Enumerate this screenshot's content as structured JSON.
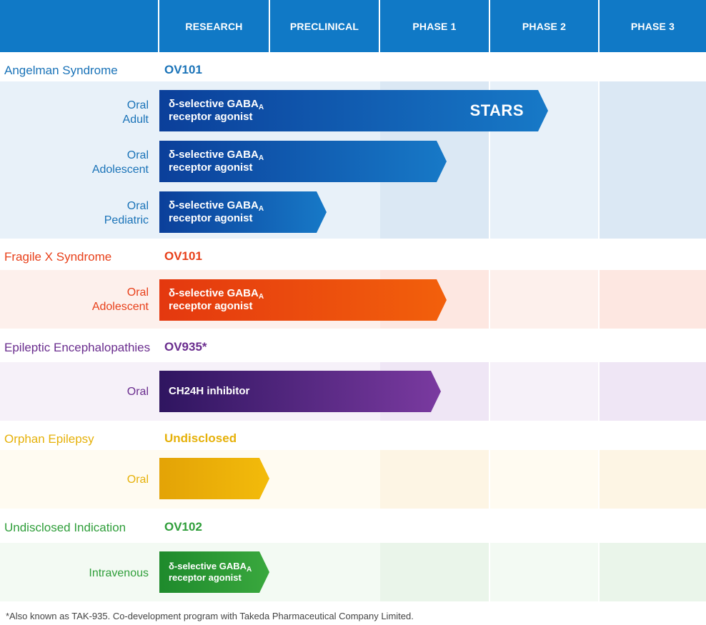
{
  "header": {
    "phases": [
      "RESEARCH",
      "PRECLINICAL",
      "PHASE 1",
      "PHASE 2",
      "PHASE 3"
    ]
  },
  "colors": {
    "header": "#1079c6",
    "angelman": "#1a73b8",
    "fragile_x": "#e8401a",
    "epileptic": "#6a2d8e",
    "orphan": "#e6b10a",
    "undisclosed": "#2f9e3a"
  },
  "programs": [
    {
      "indication": "Angelman Syndrome",
      "drug": "OV101",
      "rows": [
        {
          "route": [
            "Oral",
            "Adult"
          ],
          "mechanism": [
            "δ-selective GABA",
            "A",
            "receptor agonist"
          ],
          "progress_phase": 2.0,
          "badge": "STARS"
        },
        {
          "route": [
            "Oral",
            "Adolescent"
          ],
          "mechanism": [
            "δ-selective GABA",
            "A",
            "receptor agonist"
          ],
          "progress_phase": 1.0
        },
        {
          "route": [
            "Oral",
            "Pediatric"
          ],
          "mechanism": [
            "δ-selective GABA",
            "A",
            "receptor agonist"
          ],
          "progress_phase": 0.55
        }
      ]
    },
    {
      "indication": "Fragile X Syndrome",
      "drug": "OV101",
      "rows": [
        {
          "route": [
            "Oral",
            "Adolescent"
          ],
          "mechanism": [
            "δ-selective GABA",
            "A",
            "receptor agonist"
          ],
          "progress_phase": 1.0
        }
      ]
    },
    {
      "indication": "Epileptic Encephalopathies",
      "drug": "OV935*",
      "rows": [
        {
          "route": [
            "Oral"
          ],
          "mechanism": [
            "CH24H inhibitor"
          ],
          "progress_phase": 1.0
        }
      ]
    },
    {
      "indication": "Orphan Epilepsy",
      "drug": "Undisclosed",
      "rows": [
        {
          "route": [
            "Oral"
          ],
          "mechanism": [],
          "progress_phase": 0.0
        }
      ]
    },
    {
      "indication": "Undisclosed Indication",
      "drug": "OV102",
      "rows": [
        {
          "route": [
            "Intravenous"
          ],
          "mechanism": [
            "δ-selective GABA",
            "A",
            "receptor agonist"
          ],
          "progress_phase": 0.0
        }
      ]
    }
  ],
  "footnote": "*Also known as TAK-935. Co-development program with Takeda Pharmaceutical Company Limited."
}
